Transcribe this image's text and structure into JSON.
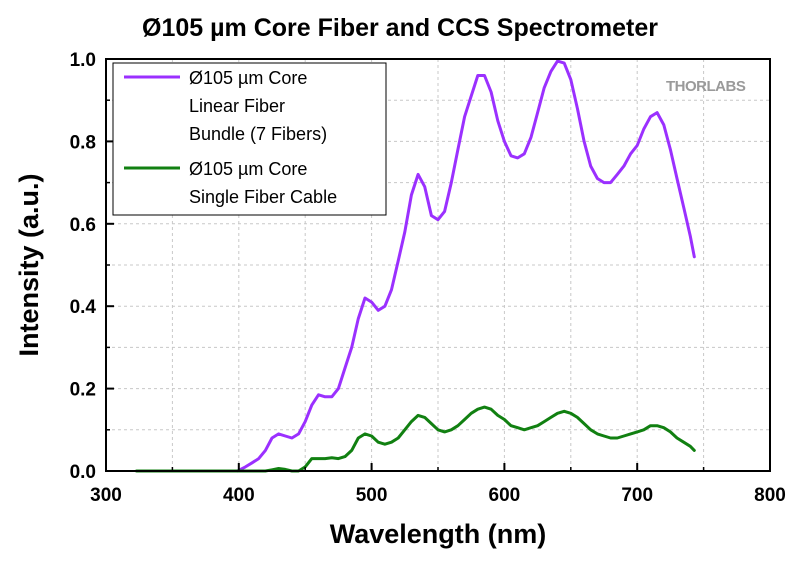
{
  "chart_data": {
    "type": "line",
    "title": "Ø105 µm Core Fiber and CCS Spectrometer",
    "xlabel": "Wavelength (nm)",
    "ylabel": "Intensity (a.u.)",
    "xlim": [
      300,
      800
    ],
    "ylim": [
      0,
      1.0
    ],
    "xticks": [
      300,
      400,
      500,
      600,
      700,
      800
    ],
    "yticks": [
      0.0,
      0.2,
      0.4,
      0.6,
      0.8,
      1.0
    ],
    "ytick_labels": [
      "0.0",
      "0.2",
      "0.4",
      "0.6",
      "0.8",
      "1.0"
    ],
    "grid": true,
    "legend_position": "top-left",
    "watermark": "THORLABS",
    "series": [
      {
        "name_lines": [
          "Ø105 µm Core",
          "Linear Fiber",
          "Bundle (7 Fibers)"
        ],
        "color": "#9b30ff",
        "x": [
          399,
          405,
          410,
          415,
          420,
          425,
          430,
          435,
          440,
          445,
          450,
          455,
          460,
          465,
          470,
          475,
          480,
          485,
          490,
          495,
          500,
          505,
          510,
          515,
          520,
          525,
          530,
          535,
          540,
          545,
          550,
          555,
          560,
          565,
          570,
          575,
          580,
          585,
          590,
          595,
          600,
          605,
          610,
          615,
          620,
          625,
          630,
          635,
          640,
          645,
          650,
          655,
          660,
          665,
          670,
          675,
          680,
          685,
          690,
          695,
          700,
          705,
          710,
          715,
          720,
          725,
          730,
          735,
          740,
          743
        ],
        "y": [
          0.0,
          0.01,
          0.02,
          0.03,
          0.05,
          0.08,
          0.09,
          0.085,
          0.08,
          0.09,
          0.12,
          0.16,
          0.185,
          0.18,
          0.18,
          0.2,
          0.25,
          0.3,
          0.37,
          0.42,
          0.41,
          0.39,
          0.4,
          0.44,
          0.51,
          0.58,
          0.67,
          0.72,
          0.69,
          0.62,
          0.61,
          0.63,
          0.7,
          0.78,
          0.86,
          0.91,
          0.96,
          0.96,
          0.92,
          0.85,
          0.8,
          0.765,
          0.76,
          0.77,
          0.81,
          0.87,
          0.93,
          0.97,
          0.995,
          0.99,
          0.95,
          0.88,
          0.8,
          0.74,
          0.71,
          0.7,
          0.7,
          0.72,
          0.74,
          0.77,
          0.79,
          0.83,
          0.86,
          0.87,
          0.84,
          0.78,
          0.71,
          0.64,
          0.57,
          0.52
        ]
      },
      {
        "name_lines": [
          "Ø105 µm Core",
          "Single Fiber Cable"
        ],
        "color": "#118011",
        "x": [
          323,
          340,
          360,
          380,
          400,
          410,
          420,
          425,
          430,
          435,
          440,
          445,
          450,
          455,
          460,
          465,
          470,
          475,
          480,
          485,
          490,
          495,
          500,
          505,
          510,
          515,
          520,
          525,
          530,
          535,
          540,
          545,
          550,
          555,
          560,
          565,
          570,
          575,
          580,
          585,
          590,
          595,
          600,
          605,
          610,
          615,
          620,
          625,
          630,
          635,
          640,
          645,
          650,
          655,
          660,
          665,
          670,
          675,
          680,
          685,
          690,
          695,
          700,
          705,
          710,
          715,
          720,
          725,
          730,
          735,
          740,
          743
        ],
        "y": [
          0.0,
          0.0,
          0.0,
          0.0,
          0.0,
          0.0,
          0.0,
          0.003,
          0.006,
          0.004,
          0.0,
          0.0,
          0.01,
          0.03,
          0.03,
          0.03,
          0.032,
          0.03,
          0.035,
          0.05,
          0.08,
          0.09,
          0.085,
          0.07,
          0.065,
          0.07,
          0.08,
          0.1,
          0.12,
          0.135,
          0.13,
          0.115,
          0.1,
          0.095,
          0.1,
          0.11,
          0.125,
          0.14,
          0.15,
          0.155,
          0.15,
          0.135,
          0.125,
          0.11,
          0.105,
          0.1,
          0.105,
          0.11,
          0.12,
          0.13,
          0.14,
          0.145,
          0.14,
          0.13,
          0.115,
          0.1,
          0.09,
          0.085,
          0.08,
          0.08,
          0.085,
          0.09,
          0.095,
          0.1,
          0.11,
          0.11,
          0.105,
          0.095,
          0.08,
          0.07,
          0.06,
          0.05
        ]
      }
    ]
  }
}
